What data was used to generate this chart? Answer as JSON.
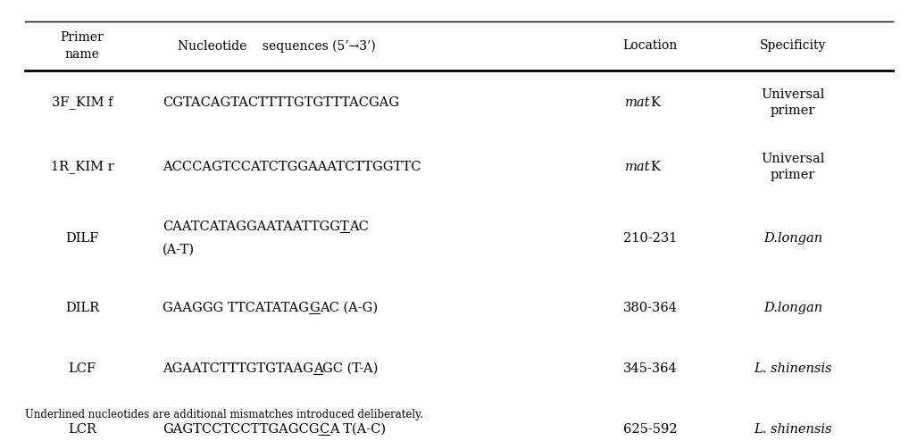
{
  "figsize": [
    10.18,
    4.94
  ],
  "dpi": 100,
  "background_color": "#ffffff",
  "header_fontsize": 10,
  "body_fontsize": 10.5,
  "footer_fontsize": 8.5,
  "line_color": "#000000",
  "header": {
    "col0": "Primer\nname",
    "col1_part1": "Nucleotide",
    "col1_part2": "sequences (5’→3’)",
    "col2": "Location",
    "col3": "Specificity"
  },
  "rows": [
    {
      "name": "3F_KIM f",
      "seq_before": "CGTACAGTACTTTTGTGTTTACGAG",
      "seq_ul": "",
      "seq_after": "",
      "seq_line2": "",
      "loc_italic": "mat",
      "loc_normal": "K",
      "spec": "Universal\nprimer",
      "spec_italic": false
    },
    {
      "name": "1R_KIM r",
      "seq_before": "ACCCAGTCCATCTGGAAATCTTGGTTC",
      "seq_ul": "",
      "seq_after": "",
      "seq_line2": "",
      "loc_italic": "mat",
      "loc_normal": "K",
      "spec": "Universal\nprimer",
      "spec_italic": false
    },
    {
      "name": "DILF",
      "seq_before": "CAATCATAGGAATAATTGG",
      "seq_ul": "T",
      "seq_after": "AC",
      "seq_line2": "(A-T)",
      "loc_italic": "",
      "loc_normal": "210-231",
      "spec": "D.longan",
      "spec_italic": true
    },
    {
      "name": "DILR",
      "seq_before": "GAAGGG TTCATATAG",
      "seq_ul": "G",
      "seq_after": "AC (A-G)",
      "seq_line2": "",
      "loc_italic": "",
      "loc_normal": "380-364",
      "spec": "D.longan",
      "spec_italic": true
    },
    {
      "name": "LCF",
      "seq_before": "AGAATCTTTGTGTAAG",
      "seq_ul": "A",
      "seq_after": "GC (T-A)",
      "seq_line2": "",
      "loc_italic": "",
      "loc_normal": "345-364",
      "spec": "L. shinensis",
      "spec_italic": true
    },
    {
      "name": "LCR",
      "seq_before": "GAGTCCTCCTTGAGCG",
      "seq_ul": "C",
      "seq_after": "A T(A-C)",
      "seq_line2": "",
      "loc_italic": "",
      "loc_normal": "625-592",
      "spec": "L. shinensis",
      "spec_italic": true
    }
  ],
  "footer": "Underlined nucleotides are additional mismatches introduced deliberately."
}
